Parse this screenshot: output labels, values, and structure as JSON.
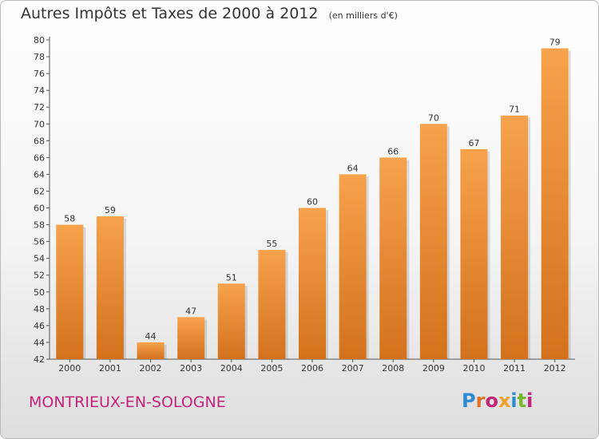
{
  "header": {
    "title": "Autres Impôts et Taxes de 2000 à 2012",
    "subtitle": "(en milliers d'€)"
  },
  "footer": {
    "commune": "MONTRIEUX-EN-SOLOGNE",
    "logo_text": "Proxiti",
    "logo_letter_colors": [
      "#2f8bd0",
      "#e0722a",
      "#c3247a",
      "#f0a32a",
      "#2f8bd0",
      "#7ab52d",
      "#c3247a"
    ]
  },
  "colors": {
    "bar_top": "#f7a24c",
    "bar_bottom": "#d4711c",
    "axis": "#555555",
    "grid": "#d0d0d0"
  },
  "chart_data": {
    "type": "bar",
    "title": "Autres Impôts et Taxes de 2000 à 2012",
    "subtitle": "(en milliers d'€)",
    "categories": [
      "2000",
      "2001",
      "2002",
      "2003",
      "2004",
      "2005",
      "2006",
      "2007",
      "2008",
      "2009",
      "2010",
      "2011",
      "2012"
    ],
    "values": [
      58,
      59,
      44,
      47,
      51,
      55,
      60,
      64,
      66,
      70,
      67,
      71,
      79
    ],
    "ylim": [
      42,
      80
    ],
    "ytick_step": 2,
    "grid": false,
    "data_labels": true
  }
}
